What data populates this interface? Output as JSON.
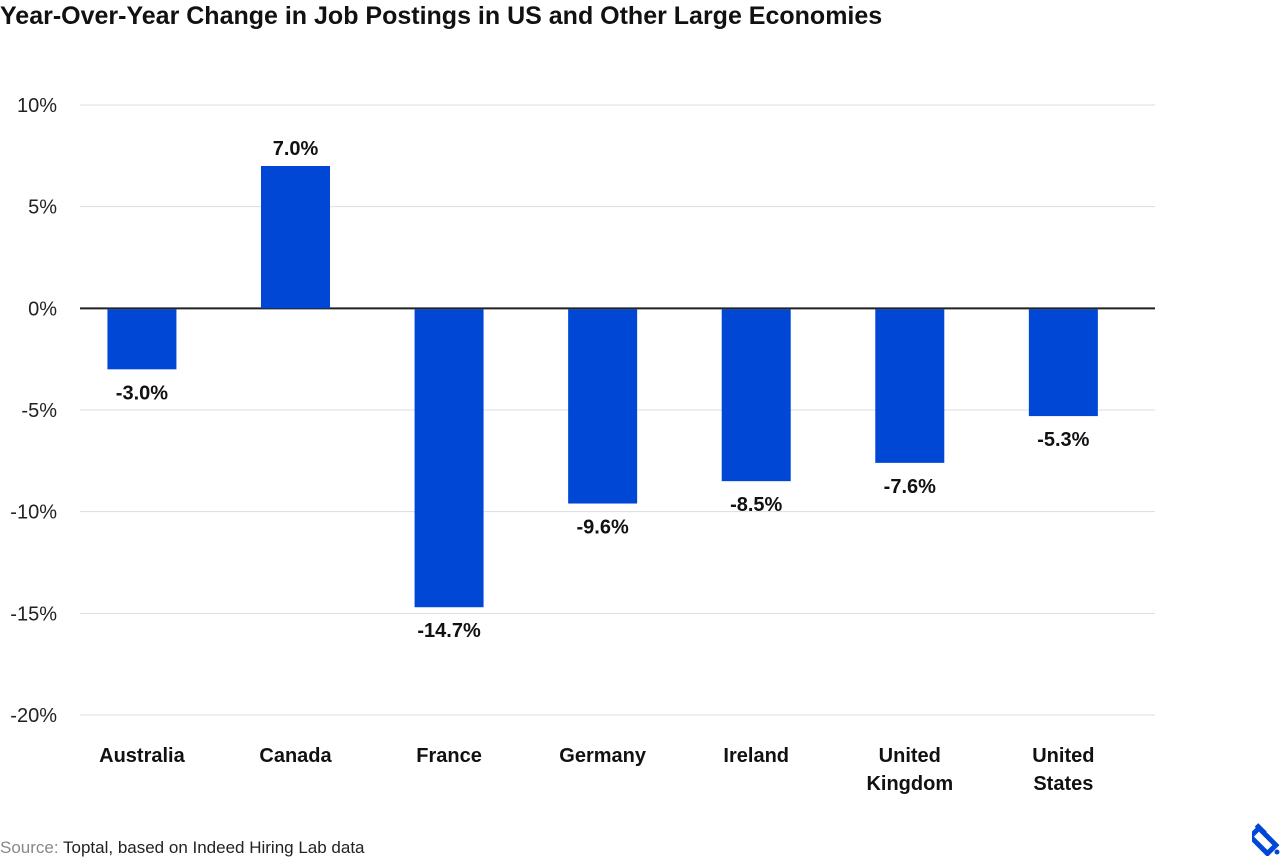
{
  "chart_data": {
    "type": "bar",
    "title": "Year-Over-Year Change in Job Postings in US and Other Large Economies",
    "categories": [
      "Australia",
      "Canada",
      "France",
      "Germany",
      "Ireland",
      "United Kingdom",
      "United States"
    ],
    "category_lines": [
      [
        "Australia"
      ],
      [
        "Canada"
      ],
      [
        "France"
      ],
      [
        "Germany"
      ],
      [
        "Ireland"
      ],
      [
        "United",
        "Kingdom"
      ],
      [
        "United",
        "States"
      ]
    ],
    "values": [
      -3.0,
      7.0,
      -14.7,
      -9.6,
      -8.5,
      -7.6,
      -5.3
    ],
    "data_labels": [
      "-3.0%",
      "7.0%",
      "-14.7%",
      "-9.6%",
      "-8.5%",
      "-7.6%",
      "-5.3%"
    ],
    "xlabel": "",
    "ylabel": "",
    "ylim": [
      -20,
      10
    ],
    "yticks": [
      10,
      5,
      0,
      -5,
      -10,
      -15,
      -20
    ],
    "ytick_labels": [
      "10%",
      "5%",
      "0%",
      "-5%",
      "-10%",
      "-15%",
      "-20%"
    ],
    "grid": true,
    "bar_color": "#0047d6"
  },
  "source": {
    "label": "Source:",
    "text": " Toptal, based on Indeed Hiring Lab data"
  },
  "logo": {
    "name": "toptal-logo",
    "color": "#0047d6"
  }
}
